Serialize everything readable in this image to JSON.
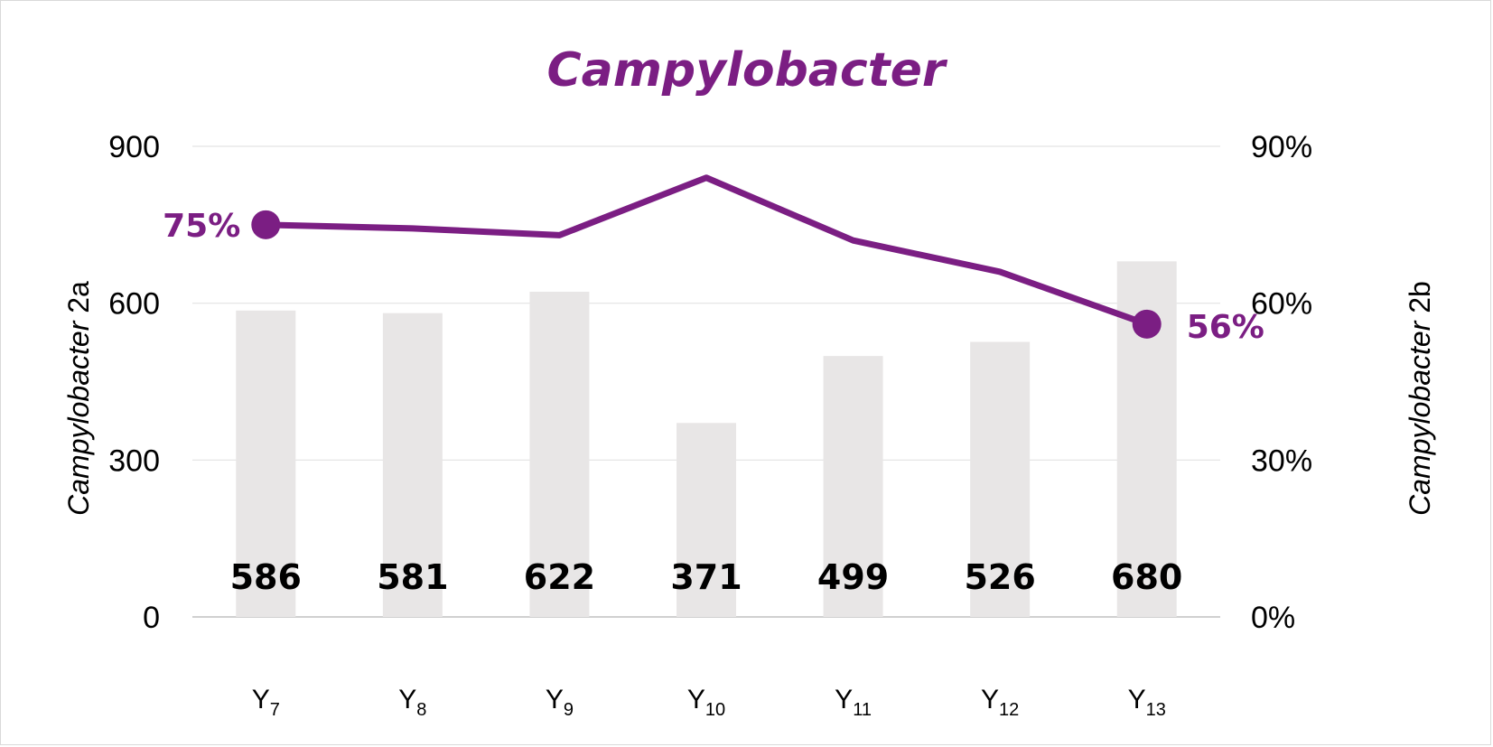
{
  "chart_data": {
    "type": "bar",
    "title": "Campylobacter",
    "categories": [
      {
        "main": "Y",
        "sub": "7"
      },
      {
        "main": "Y",
        "sub": "8"
      },
      {
        "main": "Y",
        "sub": "9"
      },
      {
        "main": "Y",
        "sub": "10"
      },
      {
        "main": "Y",
        "sub": "11"
      },
      {
        "main": "Y",
        "sub": "12"
      },
      {
        "main": "Y",
        "sub": "13"
      }
    ],
    "y_left": {
      "label_italic": "Campylobacter",
      "label_rest": " 2a",
      "ylim": [
        0,
        900
      ],
      "ticks": [
        "0",
        "300",
        "600",
        "900"
      ]
    },
    "y_right": {
      "label_italic": "Campylobacter",
      "label_rest": " 2b",
      "ylim": [
        0,
        90
      ],
      "ticks": [
        "0%",
        "30%",
        "60%",
        "90%"
      ]
    },
    "series": [
      {
        "type": "bar",
        "axis": "left",
        "values": [
          586,
          581,
          622,
          371,
          499,
          526,
          680
        ],
        "color": "#e8e6e6"
      },
      {
        "type": "line",
        "axis": "right",
        "values": [
          75,
          74.3,
          73,
          84,
          72,
          66,
          56
        ],
        "color": "#7b1e83"
      }
    ],
    "line_end_labels": {
      "first": "75%",
      "last": "56%"
    },
    "grid": true,
    "title_color": "#7b1e83"
  }
}
